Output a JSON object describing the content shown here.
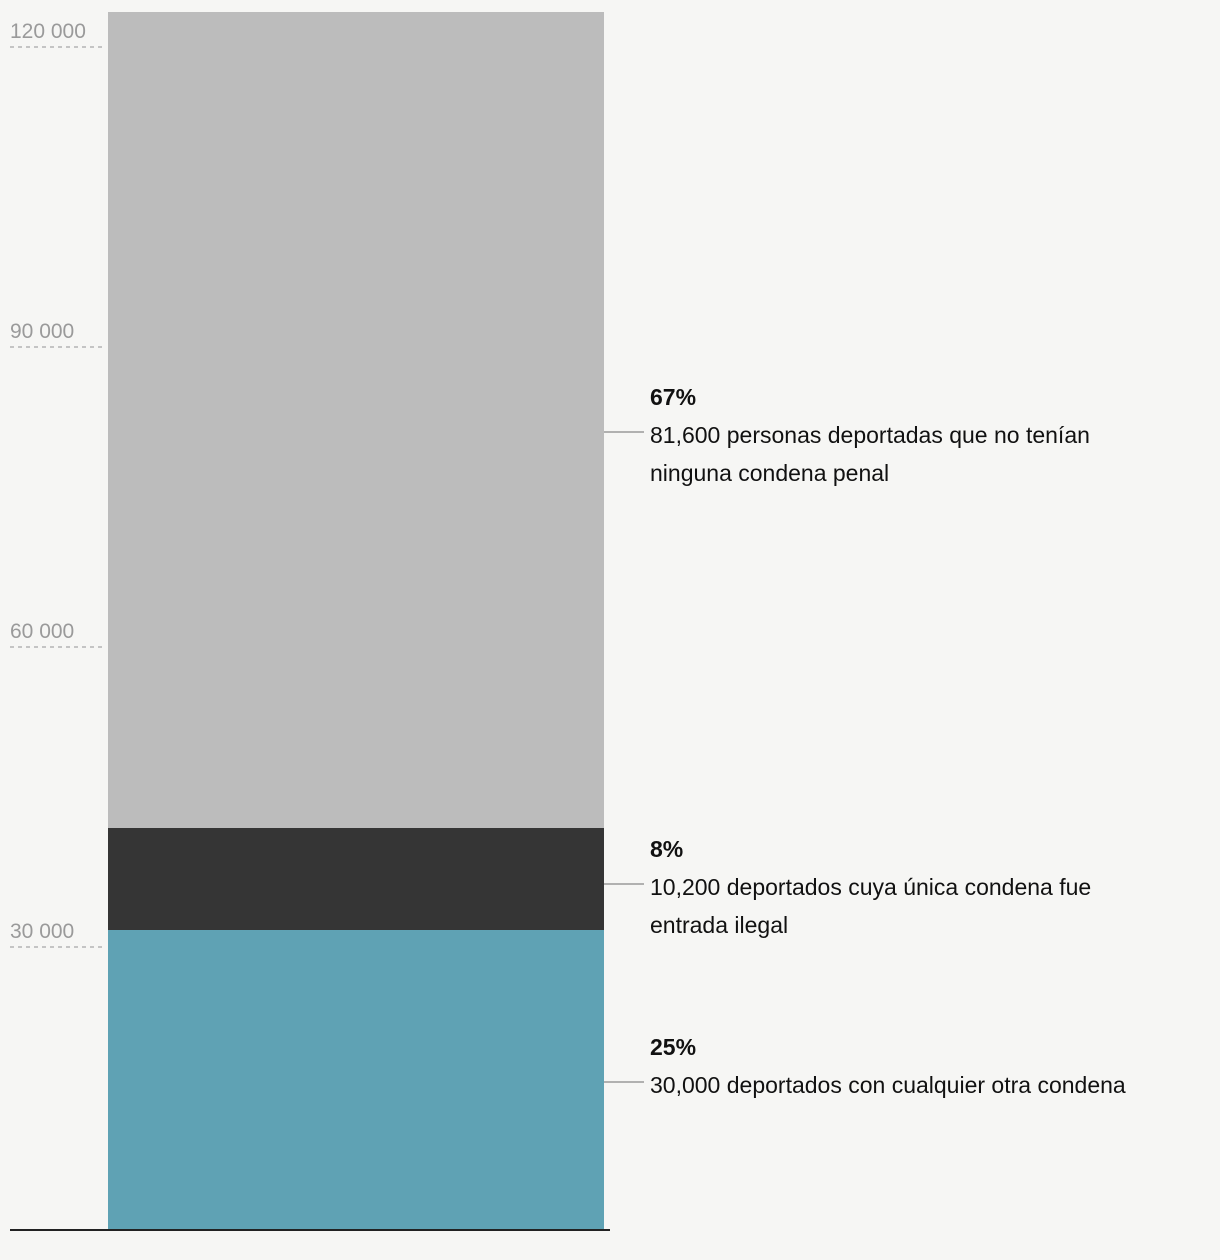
{
  "chart_data": {
    "type": "bar",
    "stacked": true,
    "ylim": [
      0,
      120000
    ],
    "yticks": [
      {
        "value": 120000,
        "label": "120 000"
      },
      {
        "value": 90000,
        "label": "90 000"
      },
      {
        "value": 60000,
        "label": "60 000"
      },
      {
        "value": 30000,
        "label": "30 000"
      }
    ],
    "grid": false,
    "series": [
      {
        "value": 30000,
        "percent": "25%",
        "description_lines": [
          "30,000 deportados con cualquier otra condena"
        ],
        "color": "#5fa2b4"
      },
      {
        "value": 10200,
        "percent": "8%",
        "description_lines": [
          "10,200 deportados cuya única condena fue",
          "entrada ilegal"
        ],
        "color": "#353535"
      },
      {
        "value": 81600,
        "percent": "67%",
        "description_lines": [
          "81,600 personas deportadas que no tenían",
          "ninguna condena penal"
        ],
        "color": "#bcbcbc"
      }
    ]
  }
}
